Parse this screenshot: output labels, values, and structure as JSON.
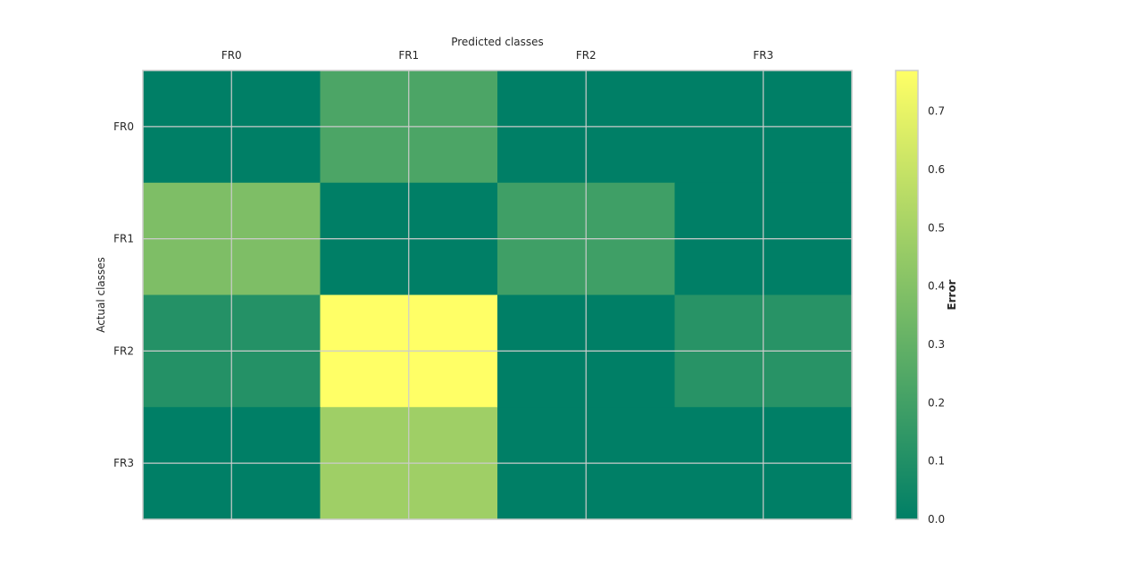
{
  "chart_data": {
    "type": "heatmap",
    "title": "",
    "xlabel": "Predicted classes",
    "ylabel": "Actual classes",
    "x_categories": [
      "FR0",
      "FR1",
      "FR2",
      "FR3"
    ],
    "y_categories": [
      "FR0",
      "FR1",
      "FR2",
      "FR3"
    ],
    "x_axis_position": "top",
    "values": [
      [
        0.0,
        0.23,
        0.0,
        0.0
      ],
      [
        0.38,
        0.0,
        0.19,
        0.0
      ],
      [
        0.11,
        0.77,
        0.0,
        0.12
      ],
      [
        0.0,
        0.48,
        0.0,
        0.0
      ]
    ],
    "grid": true,
    "colorbar": {
      "label": "Error",
      "range": [
        0.0,
        0.77
      ],
      "ticks": [
        "0.0",
        "0.1",
        "0.2",
        "0.3",
        "0.4",
        "0.5",
        "0.6",
        "0.7"
      ],
      "colormap": [
        "#007f66",
        "#ffff66"
      ]
    }
  }
}
